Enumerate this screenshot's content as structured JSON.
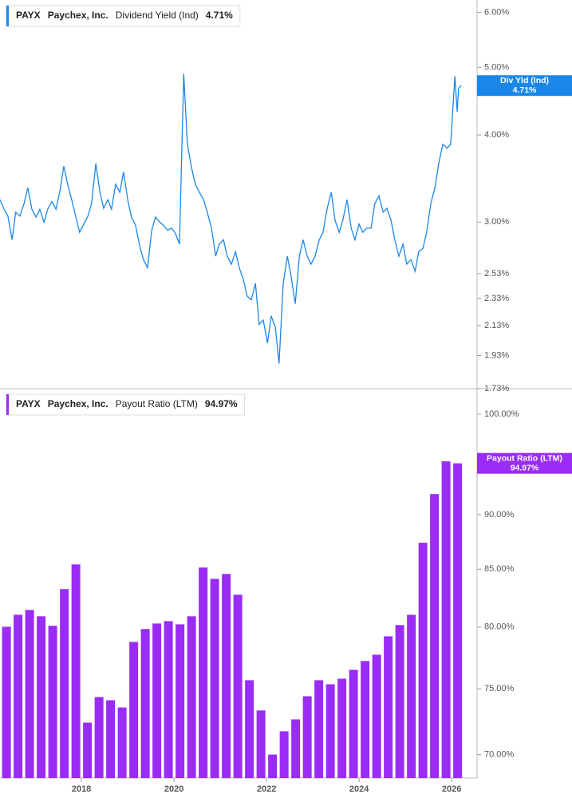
{
  "chart_data": [
    {
      "type": "line",
      "log_scale": true,
      "legend": {
        "ticker": "PAYX",
        "company": "Paychex, Inc.",
        "value": "4.71%"
      },
      "end_label": {
        "name": "Div Yld (Ind)",
        "value": "4.71%"
      },
      "xlim": [
        2016.24,
        2026.55
      ],
      "ylim": [
        1.73,
        6.25
      ],
      "yticks": [
        {
          "value": 6,
          "label": "6.00%"
        },
        {
          "value": 5,
          "label": "5.00%"
        },
        {
          "value": 4,
          "label": "4.00%"
        },
        {
          "value": 3,
          "label": "3.00%"
        },
        {
          "value": 2.53,
          "label": "2.53%"
        },
        {
          "value": 2.33,
          "label": "2.33%"
        },
        {
          "value": 2.13,
          "label": "2.13%"
        },
        {
          "value": 1.93,
          "label": "1.93%"
        },
        {
          "value": 1.73,
          "label": "1.73%"
        }
      ],
      "x": [
        2016.24,
        2016.33,
        2016.41,
        2016.5,
        2016.58,
        2016.67,
        2016.76,
        2016.84,
        2016.93,
        2017.02,
        2017.1,
        2017.19,
        2017.27,
        2017.36,
        2017.45,
        2017.53,
        2017.62,
        2017.71,
        2017.79,
        2017.88,
        2017.96,
        2018.05,
        2018.14,
        2018.22,
        2018.31,
        2018.4,
        2018.48,
        2018.57,
        2018.65,
        2018.74,
        2018.83,
        2018.91,
        2019.0,
        2019.08,
        2019.17,
        2019.26,
        2019.34,
        2019.43,
        2019.52,
        2019.6,
        2019.69,
        2019.77,
        2019.86,
        2019.95,
        2020.03,
        2020.12,
        2020.21,
        2020.29,
        2020.38,
        2020.46,
        2020.55,
        2020.64,
        2020.72,
        2020.81,
        2020.9,
        2020.98,
        2021.07,
        2021.15,
        2021.24,
        2021.33,
        2021.41,
        2021.5,
        2021.58,
        2021.67,
        2021.76,
        2021.84,
        2021.93,
        2022.02,
        2022.1,
        2022.19,
        2022.27,
        2022.36,
        2022.45,
        2022.53,
        2022.62,
        2022.71,
        2022.79,
        2022.88,
        2022.96,
        2023.05,
        2023.14,
        2023.22,
        2023.31,
        2023.4,
        2023.48,
        2023.57,
        2023.65,
        2023.74,
        2023.83,
        2023.91,
        2024.0,
        2024.08,
        2024.17,
        2024.26,
        2024.34,
        2024.43,
        2024.52,
        2024.6,
        2024.69,
        2024.77,
        2024.86,
        2024.95,
        2025.03,
        2025.12,
        2025.21,
        2025.29,
        2025.38,
        2025.46,
        2025.55,
        2025.64,
        2025.72,
        2025.81,
        2025.9,
        2025.98,
        2026.07,
        2026.12,
        2026.15,
        2026.21
      ],
      "series": [
        {
          "name": "Dividend Yield (Ind)",
          "color": "#1a87e8",
          "values": [
            3.23,
            3.13,
            3.06,
            2.83,
            3.1,
            3.06,
            3.19,
            3.36,
            3.13,
            3.05,
            3.13,
            3.0,
            3.13,
            3.21,
            3.13,
            3.31,
            3.61,
            3.38,
            3.23,
            3.05,
            2.9,
            2.98,
            3.06,
            3.19,
            3.64,
            3.31,
            3.14,
            3.23,
            3.13,
            3.4,
            3.31,
            3.54,
            3.23,
            3.05,
            2.97,
            2.77,
            2.65,
            2.58,
            2.92,
            3.05,
            3.0,
            2.97,
            2.92,
            2.94,
            2.89,
            2.79,
            4.9,
            3.88,
            3.59,
            3.4,
            3.31,
            3.23,
            3.1,
            2.94,
            2.68,
            2.79,
            2.83,
            2.68,
            2.61,
            2.72,
            2.58,
            2.48,
            2.35,
            2.32,
            2.45,
            2.14,
            2.17,
            2.01,
            2.2,
            2.12,
            1.88,
            2.45,
            2.68,
            2.51,
            2.29,
            2.68,
            2.83,
            2.68,
            2.61,
            2.68,
            2.83,
            2.9,
            3.14,
            3.31,
            3.02,
            2.9,
            3.02,
            3.23,
            2.94,
            2.83,
            2.98,
            2.9,
            2.94,
            2.94,
            3.19,
            3.27,
            3.1,
            3.14,
            3.02,
            2.83,
            2.68,
            2.79,
            2.61,
            2.65,
            2.55,
            2.72,
            2.75,
            2.9,
            3.19,
            3.36,
            3.64,
            3.88,
            3.83,
            3.88,
            4.86,
            4.32,
            4.67,
            4.71
          ]
        }
      ]
    },
    {
      "type": "bar",
      "log_scale": true,
      "legend": {
        "ticker": "PAYX",
        "company": "Paychex, Inc.",
        "value": "94.97%"
      },
      "end_label": {
        "name": "Payout Ratio (LTM)",
        "value": "94.97%"
      },
      "xlim": [
        2016.24,
        2026.55
      ],
      "xticks": [
        2018,
        2020,
        2022,
        2024,
        2026
      ],
      "ylim": [
        68.3,
        102.7
      ],
      "yticks": [
        {
          "value": 100,
          "label": "100.00%"
        },
        {
          "value": 90,
          "label": "90.00%"
        },
        {
          "value": 85,
          "label": "85.00%"
        },
        {
          "value": 80,
          "label": "80.00%"
        },
        {
          "value": 75,
          "label": "75.00%"
        },
        {
          "value": 70,
          "label": "70.00%"
        }
      ],
      "x": [
        2016.38,
        2016.63,
        2016.88,
        2017.13,
        2017.38,
        2017.63,
        2017.88,
        2018.13,
        2018.38,
        2018.63,
        2018.88,
        2019.13,
        2019.38,
        2019.63,
        2019.88,
        2020.13,
        2020.38,
        2020.63,
        2020.88,
        2021.13,
        2021.38,
        2021.63,
        2021.88,
        2022.13,
        2022.38,
        2022.63,
        2022.88,
        2023.13,
        2023.38,
        2023.63,
        2023.88,
        2024.13,
        2024.38,
        2024.63,
        2024.88,
        2025.13,
        2025.38,
        2025.63,
        2025.88,
        2026.13
      ],
      "series": [
        {
          "name": "Payout Ratio (LTM)",
          "color": "#9a2cf5",
          "values": [
            80.03,
            81.04,
            81.45,
            80.91,
            80.11,
            83.25,
            85.43,
            72.38,
            74.35,
            74.1,
            73.54,
            78.77,
            79.84,
            80.3,
            80.5,
            80.23,
            80.91,
            85.15,
            84.15,
            84.58,
            82.76,
            75.67,
            73.31,
            70.0,
            71.73,
            72.63,
            74.41,
            75.67,
            75.35,
            75.79,
            76.5,
            77.21,
            77.72,
            79.23,
            80.17,
            81.04,
            87.39,
            91.96,
            95.17,
            94.97
          ]
        }
      ]
    }
  ]
}
